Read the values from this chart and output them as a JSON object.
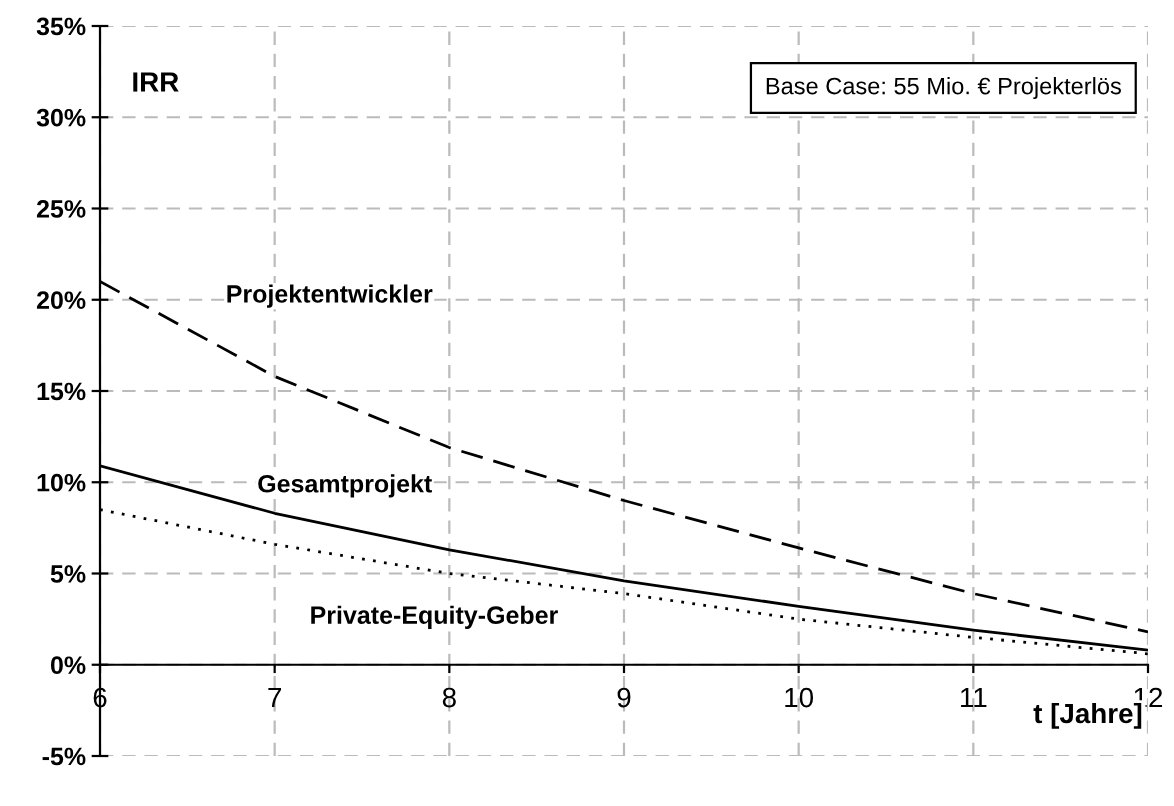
{
  "chart_data": {
    "type": "line",
    "ylabel": "IRR",
    "xlabel": "t [Jahre]",
    "annotations": [
      "Base Case: 55 Mio. € Projekterlös"
    ],
    "x": [
      6,
      7,
      8,
      9,
      10,
      11,
      12
    ],
    "series": [
      {
        "name": "Projektentwickler",
        "color": "#000000",
        "line_style": "dashed",
        "values": [
          21,
          15.8,
          11.9,
          9.0,
          6.4,
          3.9,
          1.8
        ]
      },
      {
        "name": "Gesamtprojekt",
        "color": "#000000",
        "line_style": "solid",
        "values": [
          10.9,
          8.3,
          6.3,
          4.6,
          3.2,
          1.9,
          0.8
        ]
      },
      {
        "name": "Private-Equity-Geber",
        "color": "#000000",
        "line_style": "dotted",
        "values": [
          8.5,
          6.6,
          5.0,
          3.9,
          2.5,
          1.5,
          0.6
        ]
      }
    ],
    "xlim": [
      6,
      12
    ],
    "xticks": [
      6,
      7,
      8,
      9,
      10,
      11,
      12
    ],
    "ylim": [
      -5,
      35
    ],
    "yticks": [
      {
        "value": -5,
        "label": "-5%"
      },
      {
        "value": 0,
        "label": "0%"
      },
      {
        "value": 5,
        "label": "5%"
      },
      {
        "value": 10,
        "label": "10%"
      },
      {
        "value": 15,
        "label": "15%"
      },
      {
        "value": 20,
        "label": "20%"
      },
      {
        "value": 25,
        "label": "25%"
      },
      {
        "value": 30,
        "label": "30%"
      },
      {
        "value": 35,
        "label": "35%"
      }
    ],
    "grid": true,
    "legend": false,
    "marker": "none"
  }
}
